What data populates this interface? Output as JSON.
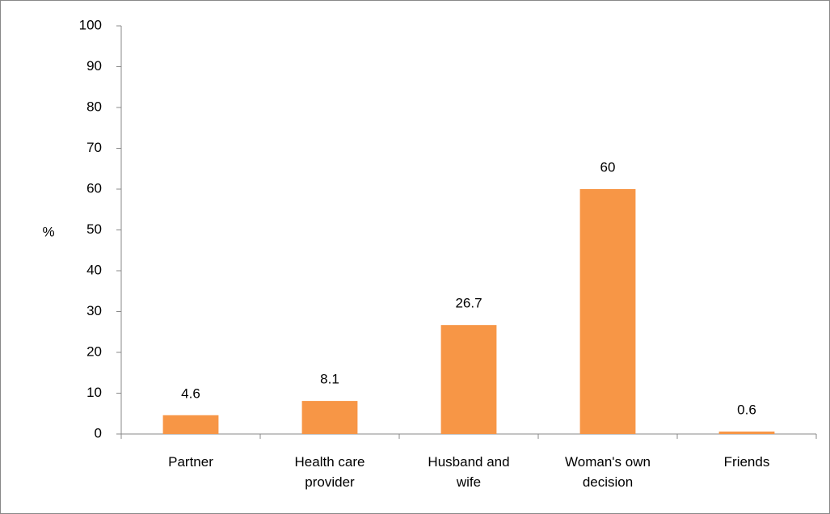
{
  "chart_data": {
    "type": "bar",
    "ylabel": "%",
    "categories": [
      "Partner",
      "Health care provider",
      "Husband and wife",
      "Woman's own decision",
      "Friends"
    ],
    "values": [
      4.6,
      8.1,
      26.7,
      60,
      0.6
    ],
    "color": "#f79646",
    "ylim": [
      0,
      100
    ],
    "yticks": [
      0,
      10,
      20,
      30,
      40,
      50,
      60,
      70,
      80,
      90,
      100
    ],
    "grid": false
  }
}
